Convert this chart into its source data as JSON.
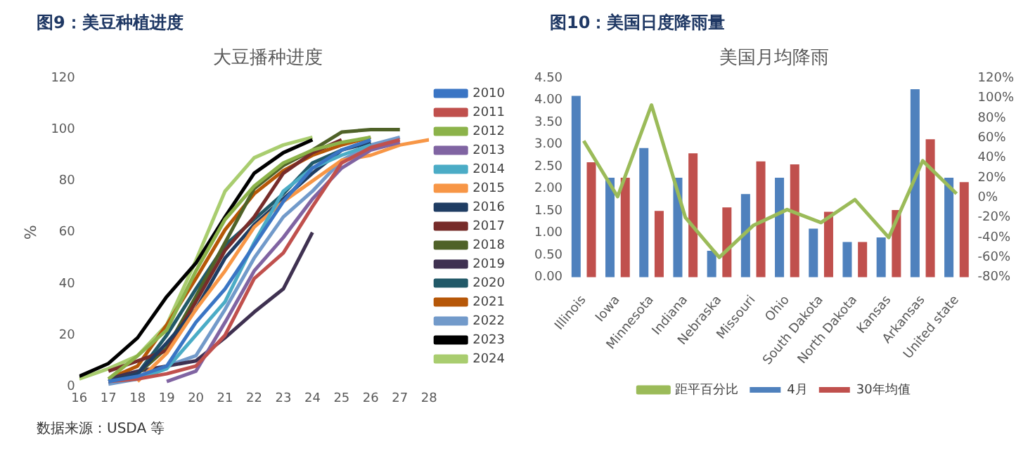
{
  "chart_data": [
    {
      "type": "line",
      "title": "图9：美豆种植进度",
      "subtitle": "大豆播种进度",
      "ylabel": "%",
      "xlim": [
        16,
        28
      ],
      "xticks": [
        16,
        17,
        18,
        19,
        20,
        21,
        22,
        23,
        24,
        25,
        26,
        27,
        28
      ],
      "ylim": [
        0,
        120
      ],
      "yticks": [
        0,
        20,
        40,
        60,
        80,
        100,
        120
      ],
      "grid": false,
      "legend": "right",
      "marker": "none",
      "line_style": "solid",
      "annotations": [
        "数据来源：USDA 等"
      ],
      "series": [
        {
          "name": "2010",
          "color": "#3a75c4",
          "x": [
            17,
            18,
            19,
            20,
            21,
            22,
            23,
            24,
            25,
            26
          ],
          "values": [
            2,
            4,
            8,
            25,
            38,
            55,
            72,
            85,
            92,
            96
          ]
        },
        {
          "name": "2011",
          "color": "#c0504d",
          "x": [
            17,
            18,
            19,
            20,
            21,
            22,
            23,
            24,
            25,
            26,
            27
          ],
          "values": [
            2,
            3,
            5,
            8,
            20,
            42,
            52,
            70,
            87,
            93,
            96
          ]
        },
        {
          "name": "2012",
          "color": "#8cb34a",
          "x": [
            17,
            18,
            19,
            20,
            21,
            22,
            23,
            24,
            25,
            26
          ],
          "values": [
            3,
            12,
            22,
            45,
            65,
            78,
            87,
            92,
            95,
            97
          ]
        },
        {
          "name": "2013",
          "color": "#8064a2",
          "x": [
            19,
            20,
            21,
            22,
            23,
            24,
            25,
            26,
            27
          ],
          "values": [
            2,
            6,
            25,
            45,
            58,
            73,
            85,
            92,
            95
          ]
        },
        {
          "name": "2014",
          "color": "#4bacc6",
          "x": [
            17,
            18,
            19,
            20,
            21,
            22,
            23,
            24,
            25,
            26
          ],
          "values": [
            2,
            3,
            7,
            20,
            33,
            56,
            76,
            85,
            90,
            94
          ]
        },
        {
          "name": "2015",
          "color": "#f79646",
          "x": [
            18,
            19,
            20,
            21,
            22,
            23,
            24,
            25,
            26,
            27,
            28
          ],
          "values": [
            2,
            13,
            30,
            45,
            62,
            72,
            80,
            88,
            90,
            94,
            96
          ]
        },
        {
          "name": "2016",
          "color": "#1f3d63",
          "x": [
            17,
            18,
            19,
            20,
            21,
            22,
            23,
            24,
            25,
            26
          ],
          "values": [
            2,
            5,
            17,
            30,
            50,
            63,
            73,
            83,
            92,
            95
          ]
        },
        {
          "name": "2017",
          "color": "#772c2a",
          "x": [
            17,
            18,
            19,
            20,
            21,
            22,
            23,
            24,
            25
          ],
          "values": [
            6,
            10,
            14,
            33,
            53,
            66,
            83,
            91,
            96
          ]
        },
        {
          "name": "2018",
          "color": "#4f6228",
          "x": [
            17,
            18,
            19,
            20,
            21,
            22,
            23,
            24,
            25,
            26,
            27
          ],
          "values": [
            2,
            5,
            15,
            35,
            56,
            77,
            86,
            92,
            99,
            100,
            100
          ]
        },
        {
          "name": "2019",
          "color": "#3f3151",
          "x": [
            17,
            18,
            19,
            20,
            21,
            22,
            23,
            24
          ],
          "values": [
            3,
            6,
            8,
            10,
            19,
            29,
            38,
            60
          ]
        },
        {
          "name": "2020",
          "color": "#215968",
          "x": [
            17,
            18,
            19,
            20,
            21,
            22,
            23,
            24,
            25
          ],
          "values": [
            2,
            5,
            20,
            38,
            55,
            65,
            75,
            87,
            92
          ]
        },
        {
          "name": "2021",
          "color": "#b65708",
          "x": [
            17,
            18,
            19,
            20,
            21,
            22,
            23,
            24,
            25,
            26
          ],
          "values": [
            3,
            8,
            24,
            42,
            61,
            75,
            84,
            90,
            94,
            97
          ]
        },
        {
          "name": "2022",
          "color": "#729aca",
          "x": [
            17,
            18,
            19,
            20,
            21,
            22,
            23,
            24,
            25,
            26,
            27
          ],
          "values": [
            1,
            3,
            8,
            12,
            30,
            50,
            66,
            76,
            88,
            94,
            97
          ]
        },
        {
          "name": "2023",
          "color": "#000000",
          "x": [
            16,
            17,
            18,
            19,
            20,
            21,
            22,
            23,
            24
          ],
          "values": [
            4,
            9,
            19,
            35,
            48,
            66,
            83,
            91,
            96
          ]
        },
        {
          "name": "2024",
          "color": "#a9cd6f",
          "x": [
            16,
            17,
            18,
            19,
            20,
            21,
            22,
            23,
            24
          ],
          "values": [
            3,
            7,
            12,
            24,
            49,
            76,
            89,
            94,
            97
          ]
        }
      ]
    },
    {
      "type": "bar",
      "title": "图10：美国日度降雨量",
      "subtitle": "美国月均降雨",
      "categories": [
        "Illinois",
        "Iowa",
        "Minnesota",
        "Indiana",
        "Nebraska",
        "Missouri",
        "Ohio",
        "South Dakota",
        "North Dakota",
        "Kansas",
        "Arkansas",
        "United state"
      ],
      "ylim": [
        0,
        4.5
      ],
      "yticks": [
        {
          "value": 0,
          "label": "0.00"
        },
        {
          "value": 0.5,
          "label": "0.50"
        },
        {
          "value": 1,
          "label": "1.00"
        },
        {
          "value": 1.5,
          "label": "1.50"
        },
        {
          "value": 2,
          "label": "2.00"
        },
        {
          "value": 2.5,
          "label": "2.50"
        },
        {
          "value": 3,
          "label": "3.00"
        },
        {
          "value": 3.5,
          "label": "3.50"
        },
        {
          "value": 4,
          "label": "4.00"
        },
        {
          "value": 4.5,
          "label": "4.50"
        }
      ],
      "y2lim": [
        -80,
        120
      ],
      "y2ticks": [
        {
          "value": -80,
          "label": "-80%"
        },
        {
          "value": -60,
          "label": "-60%"
        },
        {
          "value": -40,
          "label": "-40%"
        },
        {
          "value": -20,
          "label": "-20%"
        },
        {
          "value": 0,
          "label": "0%"
        },
        {
          "value": 20,
          "label": "20%"
        },
        {
          "value": 40,
          "label": "40%"
        },
        {
          "value": 60,
          "label": "60%"
        },
        {
          "value": 80,
          "label": "80%"
        },
        {
          "value": 100,
          "label": "100%"
        },
        {
          "value": 120,
          "label": "120%"
        }
      ],
      "grid": false,
      "legend": "bottom",
      "marker": "none",
      "series": [
        {
          "name": "4月",
          "color": "#4f81bd",
          "values": [
            4.1,
            2.25,
            2.92,
            2.25,
            0.6,
            1.88,
            2.25,
            1.1,
            0.8,
            0.9,
            4.25,
            2.25
          ]
        },
        {
          "name": "30年均值",
          "color": "#c0504d",
          "values": [
            2.6,
            2.25,
            1.5,
            2.8,
            1.58,
            2.62,
            2.55,
            1.48,
            0.8,
            1.52,
            3.12,
            2.15
          ]
        },
        {
          "name": "距平百分比",
          "type": "line",
          "axis": "y2",
          "color": "#9bbb59",
          "values": [
            57,
            1,
            93,
            -20,
            -60,
            -28,
            -12,
            -25,
            -2,
            -40,
            37,
            4
          ]
        }
      ]
    }
  ]
}
